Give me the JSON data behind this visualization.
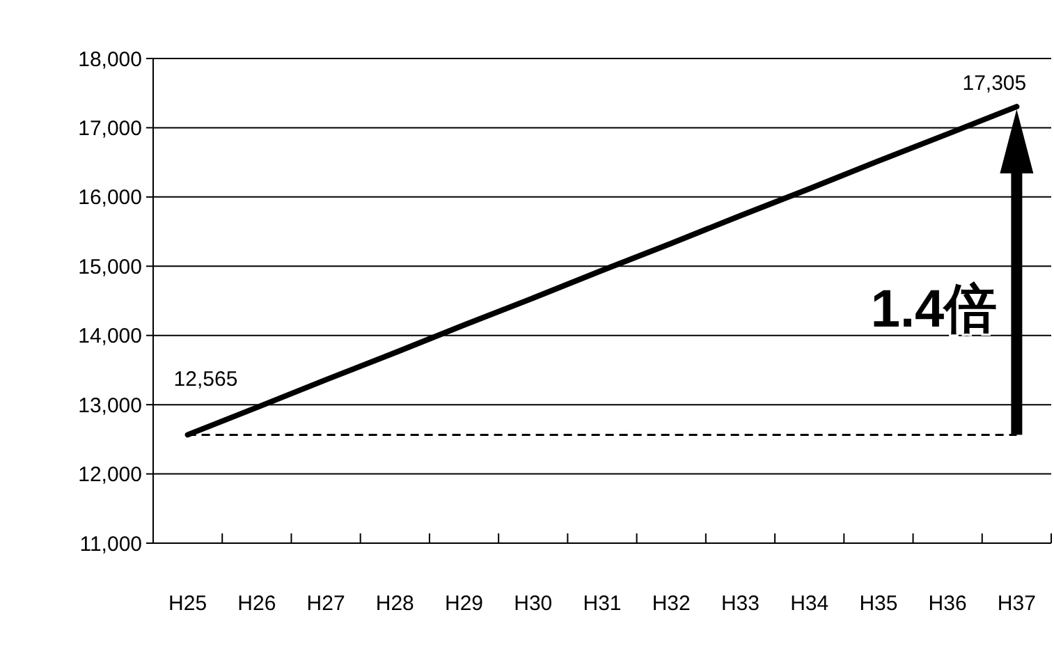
{
  "chart_data": {
    "type": "line",
    "categories": [
      "H25",
      "H26",
      "H27",
      "H28",
      "H29",
      "H30",
      "H31",
      "H32",
      "H33",
      "H34",
      "H35",
      "H36",
      "H37"
    ],
    "series": [
      {
        "color": "#000000",
        "values": [
          12565,
          12960,
          13360,
          13750,
          14150,
          14540,
          14940,
          15330,
          15730,
          16120,
          16520,
          16910,
          17305
        ],
        "value_labels": [
          "12,565",
          null,
          null,
          null,
          null,
          null,
          null,
          null,
          null,
          null,
          null,
          null,
          "17,305"
        ]
      }
    ],
    "ylim": [
      11000,
      18000
    ],
    "yticks": [
      {
        "value": 11000,
        "label": "11,000"
      },
      {
        "value": 12000,
        "label": "12,000"
      },
      {
        "value": 13000,
        "label": "13,000"
      },
      {
        "value": 14000,
        "label": "14,000"
      },
      {
        "value": 15000,
        "label": "15,000"
      },
      {
        "value": 16000,
        "label": "16,000"
      },
      {
        "value": 17000,
        "label": "17,000"
      },
      {
        "value": 18000,
        "label": "18,000"
      }
    ],
    "grid": "y",
    "marker": "none",
    "line_style": "solid",
    "ref_lines": [
      {
        "axis": "y",
        "value": 12565,
        "color": "#000000",
        "line_style": "dashed"
      }
    ],
    "annotations": [
      "1.4倍"
    ]
  }
}
